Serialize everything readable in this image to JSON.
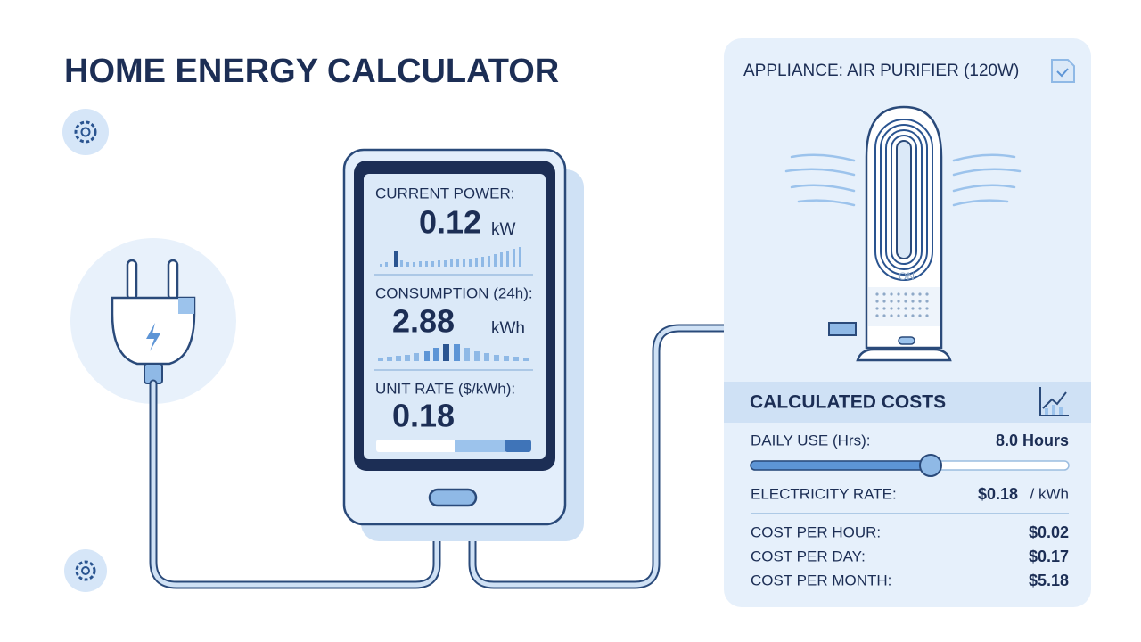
{
  "header": {
    "title": "HOME ENERGY CALCULATOR"
  },
  "meter": {
    "current_power": {
      "label": "CURRENT POWER:",
      "value": "0.12",
      "unit": "kW"
    },
    "consumption": {
      "label": "CONSUMPTION (24h):",
      "value": "2.88",
      "unit": "kWh"
    },
    "unit_rate": {
      "label": "UNIT RATE ($/kWh):",
      "value": "0.18"
    }
  },
  "appliance": {
    "title": "APPLIANCE: AIR PURIFIER (120W)",
    "status": "ON"
  },
  "costs": {
    "title": "CALCULATED COSTS",
    "daily_use": {
      "label": "DAILY USE (Hrs):",
      "value": "8.0 Hours"
    },
    "rate": {
      "label": "ELECTRICITY RATE:",
      "value": "$0.18",
      "unit": "/ kWh"
    },
    "rows": [
      {
        "label": "COST PER HOUR:",
        "value": "$0.02"
      },
      {
        "label": "COST PER DAY:",
        "value": "$0.17"
      },
      {
        "label": "COST PER MONTH:",
        "value": "$5.18"
      }
    ]
  }
}
